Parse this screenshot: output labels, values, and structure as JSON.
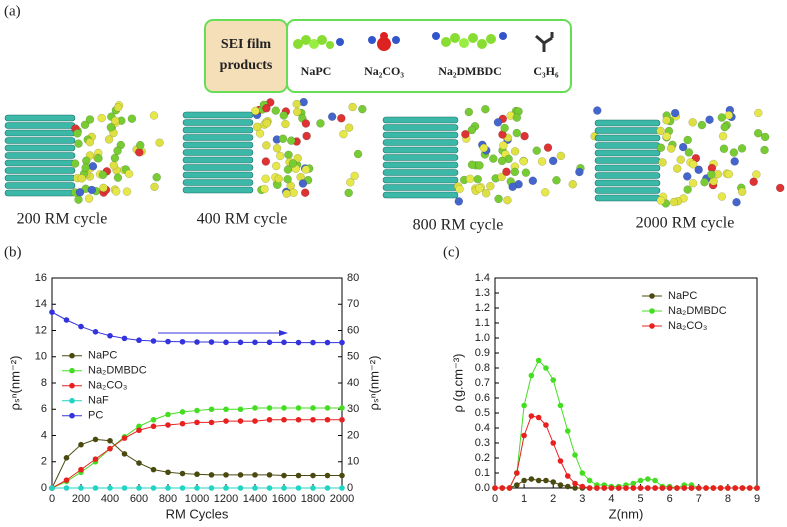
{
  "panel_a": {
    "label": "(a)",
    "legend_title_lines": [
      "SEI film",
      "products"
    ],
    "legend_items": [
      "NaPC",
      "Na₂CO₃",
      "Na₂DMBDC",
      "C₃H₆"
    ],
    "snapshots": [
      "200 RM cycle",
      "400 RM cycle",
      "800 RM cycle",
      "2000 RM cycle"
    ]
  },
  "chart_data": [
    {
      "panel": "(b)",
      "type": "line",
      "xlabel": "RM Cycles",
      "ylabel": "ρₛⁿ(nm⁻²)",
      "y2label": "ρₛⁿ(nm⁻²)",
      "x": [
        0,
        100,
        200,
        300,
        400,
        500,
        600,
        700,
        800,
        900,
        1000,
        1100,
        1200,
        1300,
        1400,
        1500,
        1600,
        1700,
        1800,
        1900,
        2000
      ],
      "series": [
        {
          "name": "NaPC",
          "color": "#4a4a10",
          "values": [
            0,
            2.3,
            3.3,
            3.7,
            3.6,
            2.6,
            1.9,
            1.4,
            1.2,
            1.1,
            1.05,
            1.0,
            1.0,
            1.0,
            1.0,
            1.0,
            0.95,
            0.95,
            0.95,
            0.95,
            0.95
          ]
        },
        {
          "name": "Na₂DMBDC",
          "color": "#44dd22",
          "values": [
            0,
            0.5,
            1.2,
            2.0,
            3.0,
            3.9,
            4.7,
            5.2,
            5.6,
            5.8,
            5.9,
            6.0,
            6.0,
            6.0,
            6.1,
            6.1,
            6.1,
            6.1,
            6.1,
            6.1,
            6.1
          ]
        },
        {
          "name": "Na₂CO₃",
          "color": "#e82020",
          "values": [
            0,
            0.6,
            1.4,
            2.2,
            3.0,
            3.8,
            4.4,
            4.7,
            4.8,
            4.9,
            5.0,
            5.0,
            5.1,
            5.1,
            5.1,
            5.2,
            5.2,
            5.2,
            5.2,
            5.2,
            5.2
          ]
        },
        {
          "name": "NaF",
          "color": "#22d4c4",
          "values": [
            0,
            0,
            0,
            0,
            0,
            0,
            0,
            0,
            0,
            0,
            0,
            0,
            0,
            0,
            0,
            0,
            0,
            0,
            0,
            0,
            0
          ]
        },
        {
          "name": "PC",
          "color": "#3333dd",
          "axis": "y2",
          "values": [
            67,
            64,
            61.5,
            59.5,
            58,
            57,
            56.3,
            56,
            55.8,
            55.7,
            55.6,
            55.6,
            55.5,
            55.5,
            55.5,
            55.5,
            55.5,
            55.4,
            55.4,
            55.4,
            55.4
          ]
        }
      ],
      "xlim": [
        0,
        2000
      ],
      "xticks": [
        0,
        200,
        400,
        600,
        800,
        1000,
        1200,
        1400,
        1600,
        1800,
        2000
      ],
      "ylim": [
        0,
        16
      ],
      "yticks": [
        0,
        2,
        4,
        6,
        8,
        10,
        12,
        14,
        16
      ],
      "y2lim": [
        0,
        80
      ],
      "y2ticks": [
        0,
        10,
        20,
        30,
        40,
        50,
        60,
        70,
        80
      ],
      "legend": "center left"
    },
    {
      "panel": "(c)",
      "type": "line",
      "xlabel": "Z(nm)",
      "ylabel": "ρ (g.cm⁻³)",
      "x": [
        0,
        0.25,
        0.5,
        0.75,
        1,
        1.25,
        1.5,
        1.75,
        2,
        2.25,
        2.5,
        2.75,
        3,
        3.25,
        3.5,
        3.75,
        4,
        4.25,
        4.5,
        4.75,
        5,
        5.25,
        5.5,
        5.75,
        6,
        6.25,
        6.5,
        6.75,
        7,
        7.25,
        7.5,
        7.75,
        8,
        8.25,
        8.5,
        8.75,
        9
      ],
      "series": [
        {
          "name": "NaPC",
          "color": "#4a4a10",
          "values": [
            0,
            0,
            0,
            0.02,
            0.05,
            0.06,
            0.05,
            0.05,
            0.04,
            0.02,
            0.01,
            0,
            0,
            0,
            0,
            0,
            0,
            0,
            0,
            0,
            0,
            0,
            0,
            0,
            0,
            0,
            0,
            0,
            0,
            0,
            0,
            0,
            0,
            0,
            0,
            0,
            0
          ]
        },
        {
          "name": "Na₂DMBDC",
          "color": "#44dd22",
          "values": [
            0,
            0,
            0,
            0.1,
            0.55,
            0.75,
            0.85,
            0.8,
            0.72,
            0.55,
            0.38,
            0.22,
            0.1,
            0.05,
            0.02,
            0.02,
            0.01,
            0.01,
            0.02,
            0.03,
            0.05,
            0.06,
            0.05,
            0.01,
            0.01,
            0,
            0.02,
            0.02,
            0,
            0,
            0,
            0,
            0,
            0,
            0,
            0,
            0
          ]
        },
        {
          "name": "Na₂CO₃",
          "color": "#e82020",
          "values": [
            0,
            0,
            0,
            0.1,
            0.35,
            0.48,
            0.47,
            0.42,
            0.3,
            0.18,
            0.08,
            0.03,
            0.01,
            0,
            0,
            0,
            0,
            0,
            0,
            0,
            0,
            0,
            0,
            0,
            0,
            0,
            0,
            0,
            0,
            0,
            0,
            0,
            0,
            0,
            0,
            0,
            0
          ]
        }
      ],
      "xlim": [
        0,
        9
      ],
      "xticks": [
        0,
        1,
        2,
        3,
        4,
        5,
        6,
        7,
        8,
        9
      ],
      "ylim": [
        0,
        1.4
      ],
      "yticks": [
        {
          "value": 0,
          "label": "0.0"
        },
        0.1,
        0.2,
        0.3,
        0.4,
        0.5,
        0.6,
        0.7,
        0.8,
        0.9,
        {
          "value": 1,
          "label": "1.0"
        },
        1.1,
        1.2,
        1.3,
        1.4
      ],
      "legend": "upper right"
    }
  ]
}
